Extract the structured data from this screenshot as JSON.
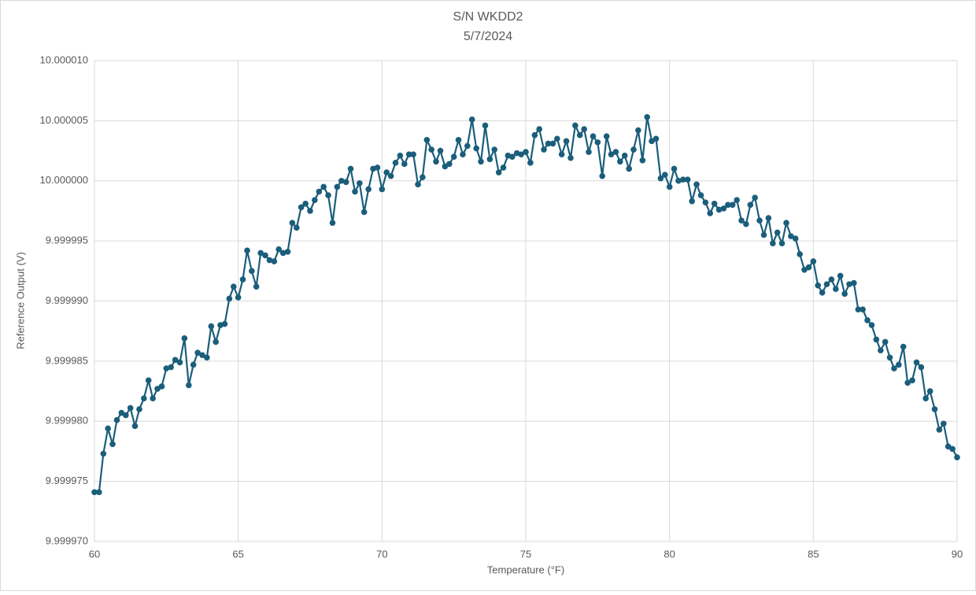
{
  "chart_data": {
    "type": "line",
    "title": "S/N WKDD2",
    "subtitle": "5/7/2024",
    "x_label": "Temperature (°F)",
    "y_label": "Reference Output (V)",
    "xlim": [
      60,
      90
    ],
    "xticks": [
      60,
      65,
      70,
      75,
      80,
      85,
      90
    ],
    "ylim": [
      9.99997,
      10.00001
    ],
    "yticks": [
      {
        "value": 9.99997,
        "label": "9.999970"
      },
      {
        "value": 9.999975,
        "label": "9.999975"
      },
      {
        "value": 9.99998,
        "label": "9.999980"
      },
      {
        "value": 9.999985,
        "label": "9.999985"
      },
      {
        "value": 9.99999,
        "label": "9.999990"
      },
      {
        "value": 9.999995,
        "label": "9.999995"
      },
      {
        "value": 10,
        "label": "10.000000"
      },
      {
        "value": 10.000005,
        "label": "10.000005"
      },
      {
        "value": 10.00001,
        "label": "10.000010"
      }
    ],
    "grid": true,
    "x": [
      60,
      60.16,
      60.31,
      60.47,
      60.63,
      60.78,
      60.94,
      61.09,
      61.25,
      61.41,
      61.56,
      61.72,
      61.88,
      62.03,
      62.19,
      62.34,
      62.5,
      62.66,
      62.81,
      62.97,
      63.13,
      63.28,
      63.44,
      63.59,
      63.75,
      63.91,
      64.06,
      64.22,
      64.38,
      64.53,
      64.69,
      64.84,
      65,
      65.16,
      65.31,
      65.47,
      65.63,
      65.78,
      65.94,
      66.09,
      66.25,
      66.41,
      66.56,
      66.72,
      66.88,
      67.03,
      67.19,
      67.34,
      67.5,
      67.66,
      67.81,
      67.97,
      68.13,
      68.28,
      68.44,
      68.59,
      68.75,
      68.91,
      69.06,
      69.22,
      69.38,
      69.53,
      69.69,
      69.84,
      70,
      70.16,
      70.31,
      70.47,
      70.63,
      70.78,
      70.94,
      71.09,
      71.25,
      71.41,
      71.56,
      71.72,
      71.88,
      72.03,
      72.19,
      72.34,
      72.5,
      72.66,
      72.81,
      72.97,
      73.13,
      73.28,
      73.44,
      73.59,
      73.75,
      73.91,
      74.06,
      74.22,
      74.38,
      74.53,
      74.69,
      74.84,
      75,
      75.16,
      75.31,
      75.47,
      75.63,
      75.78,
      75.94,
      76.09,
      76.25,
      76.41,
      76.56,
      76.72,
      76.88,
      77.03,
      77.19,
      77.34,
      77.5,
      77.66,
      77.81,
      77.97,
      78.13,
      78.28,
      78.44,
      78.59,
      78.75,
      78.91,
      79.06,
      79.22,
      79.38,
      79.53,
      79.69,
      79.84,
      80,
      80.16,
      80.31,
      80.47,
      80.63,
      80.78,
      80.94,
      81.09,
      81.25,
      81.41,
      81.56,
      81.72,
      81.88,
      82.03,
      82.19,
      82.34,
      82.5,
      82.66,
      82.81,
      82.97,
      83.13,
      83.28,
      83.44,
      83.59,
      83.75,
      83.91,
      84.06,
      84.22,
      84.38,
      84.53,
      84.69,
      84.84,
      85,
      85.16,
      85.31,
      85.47,
      85.63,
      85.78,
      85.94,
      86.09,
      86.25,
      86.41,
      86.56,
      86.72,
      86.88,
      87.03,
      87.19,
      87.34,
      87.5,
      87.66,
      87.81,
      87.97,
      88.13,
      88.28,
      88.44,
      88.59,
      88.75,
      88.91,
      89.06,
      89.22,
      89.38,
      89.53,
      89.69,
      89.84,
      90
    ],
    "series": [
      {
        "name": "Reference Output (V)",
        "color": "#1b5e7b",
        "values": [
          9.9999741,
          9.9999741,
          9.9999773,
          9.9999794,
          9.9999781,
          9.9999801,
          9.9999807,
          9.9999805,
          9.9999811,
          9.9999796,
          9.999981,
          9.9999819,
          9.9999834,
          9.9999819,
          9.9999827,
          9.9999829,
          9.9999844,
          9.9999845,
          9.9999851,
          9.9999849,
          9.9999869,
          9.999983,
          9.9999847,
          9.9999857,
          9.9999855,
          9.9999853,
          9.9999879,
          9.9999866,
          9.999988,
          9.9999881,
          9.9999902,
          9.9999912,
          9.9999903,
          9.9999918,
          9.9999942,
          9.9999925,
          9.9999912,
          9.999994,
          9.9999938,
          9.9999934,
          9.9999933,
          9.9999943,
          9.999994,
          9.9999941,
          9.9999965,
          9.9999961,
          9.9999978,
          9.9999981,
          9.9999975,
          9.9999984,
          9.9999991,
          9.9999995,
          9.9999988,
          9.9999965,
          9.9999995,
          10,
          9.9999999,
          10.000001,
          9.9999991,
          9.9999998,
          9.9999974,
          9.9999993,
          10.000001,
          10.0000011,
          9.9999993,
          10.0000007,
          10.0000004,
          10.0000015,
          10.0000021,
          10.0000014,
          10.0000022,
          10.0000022,
          9.9999997,
          10.0000003,
          10.0000034,
          10.0000026,
          10.0000016,
          10.0000025,
          10.0000012,
          10.0000014,
          10.000002,
          10.0000034,
          10.0000022,
          10.0000029,
          10.0000051,
          10.0000027,
          10.0000016,
          10.0000046,
          10.0000018,
          10.0000026,
          10.0000007,
          10.0000011,
          10.0000021,
          10.000002,
          10.0000023,
          10.0000022,
          10.0000024,
          10.0000015,
          10.0000038,
          10.0000043,
          10.0000026,
          10.0000031,
          10.0000031,
          10.0000035,
          10.0000022,
          10.0000033,
          10.0000019,
          10.0000046,
          10.0000038,
          10.0000043,
          10.0000024,
          10.0000037,
          10.0000032,
          10.0000004,
          10.0000037,
          10.0000022,
          10.0000024,
          10.0000016,
          10.0000021,
          10.000001,
          10.0000026,
          10.0000042,
          10.0000017,
          10.0000053,
          10.0000033,
          10.0000035,
          10.0000002,
          10.0000005,
          9.9999995,
          10.000001,
          10,
          10.0000001,
          10.0000001,
          9.9999983,
          9.9999997,
          9.9999988,
          9.9999982,
          9.9999973,
          9.9999981,
          9.9999976,
          9.9999977,
          9.999998,
          9.999998,
          9.9999984,
          9.9999967,
          9.9999964,
          9.999998,
          9.9999986,
          9.9999967,
          9.9999955,
          9.9999969,
          9.9999948,
          9.9999957,
          9.9999948,
          9.9999965,
          9.9999954,
          9.9999952,
          9.9999939,
          9.9999926,
          9.9999928,
          9.9999933,
          9.9999913,
          9.9999907,
          9.9999914,
          9.9999918,
          9.999991,
          9.9999921,
          9.9999906,
          9.9999914,
          9.9999915,
          9.9999893,
          9.9999893,
          9.9999884,
          9.999988,
          9.9999868,
          9.9999859,
          9.9999866,
          9.9999853,
          9.9999844,
          9.9999847,
          9.9999862,
          9.9999832,
          9.9999834,
          9.9999849,
          9.9999845,
          9.9999819,
          9.9999825,
          9.999981,
          9.9999793,
          9.9999798,
          9.9999779,
          9.9999777,
          9.999977
        ]
      }
    ]
  }
}
